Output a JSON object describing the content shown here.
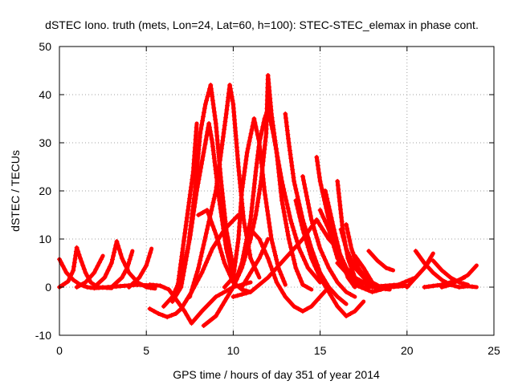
{
  "chart_data": {
    "type": "scatter",
    "marker": "plus",
    "title": "dSTEC Iono. truth (mets, Lon=24, Lat=60, h=100): STEC-STEC_elemax in phase cont.",
    "xlabel": "GPS time / hours of day 351 of year 2014",
    "ylabel": "dSTEC  / TECUs",
    "xlim": [
      0,
      25
    ],
    "ylim": [
      -10,
      50
    ],
    "xticks": [
      0,
      5,
      10,
      15,
      20,
      25
    ],
    "yticks": [
      -10,
      0,
      10,
      20,
      30,
      40,
      50
    ],
    "grid": true,
    "color": "#ff0000",
    "arcs": [
      [
        [
          0.0,
          5.8
        ],
        [
          0.4,
          3.0
        ],
        [
          0.8,
          1.5
        ],
        [
          1.2,
          0.5
        ],
        [
          1.6,
          0.0
        ],
        [
          2.0,
          -0.2
        ],
        [
          2.8,
          0.0
        ],
        [
          3.5,
          0.2
        ],
        [
          4.5,
          0.5
        ],
        [
          5.5,
          0.3
        ]
      ],
      [
        [
          0.0,
          0.0
        ],
        [
          0.5,
          1.2
        ],
        [
          0.8,
          3.5
        ],
        [
          1.0,
          8.2
        ],
        [
          1.2,
          6.0
        ],
        [
          1.5,
          3.0
        ],
        [
          1.8,
          1.0
        ],
        [
          2.2,
          0.0
        ],
        [
          3.0,
          -0.2
        ]
      ],
      [
        [
          1.0,
          0.0
        ],
        [
          1.5,
          1.0
        ],
        [
          2.0,
          3.0
        ],
        [
          2.5,
          6.5
        ]
      ],
      [
        [
          2.0,
          0.0
        ],
        [
          2.6,
          2.0
        ],
        [
          3.0,
          5.0
        ],
        [
          3.3,
          9.5
        ],
        [
          3.6,
          6.0
        ],
        [
          4.0,
          3.0
        ],
        [
          4.5,
          1.0
        ],
        [
          5.0,
          0.0
        ],
        [
          5.5,
          -0.3
        ]
      ],
      [
        [
          3.0,
          0.0
        ],
        [
          3.6,
          2.0
        ],
        [
          3.9,
          4.0
        ],
        [
          4.2,
          7.5
        ]
      ],
      [
        [
          4.0,
          0.0
        ],
        [
          4.6,
          2.0
        ],
        [
          5.0,
          4.5
        ],
        [
          5.3,
          8.0
        ]
      ],
      [
        [
          5.2,
          0.5
        ],
        [
          5.8,
          0.3
        ],
        [
          6.3,
          -0.5
        ],
        [
          6.8,
          -3.0
        ],
        [
          7.2,
          -5.0
        ],
        [
          7.6,
          -7.5
        ],
        [
          8.2,
          -5.0
        ],
        [
          9.0,
          -2.0
        ],
        [
          10.0,
          0.0
        ],
        [
          11.0,
          1.0
        ]
      ],
      [
        [
          5.2,
          -4.5
        ],
        [
          5.7,
          -5.5
        ],
        [
          6.2,
          -6.2
        ],
        [
          6.7,
          -5.5
        ],
        [
          7.0,
          -4.5
        ],
        [
          7.6,
          -1.0
        ],
        [
          8.2,
          3.0
        ],
        [
          8.8,
          8.0
        ],
        [
          9.5,
          12.0
        ],
        [
          10.3,
          15.0
        ]
      ],
      [
        [
          6.0,
          -4.0
        ],
        [
          6.5,
          -2.0
        ],
        [
          7.0,
          2.0
        ],
        [
          7.5,
          10.0
        ],
        [
          7.9,
          20.0
        ],
        [
          8.3,
          28.0
        ],
        [
          8.6,
          34.0
        ],
        [
          8.8,
          30.0
        ],
        [
          9.2,
          18.0
        ],
        [
          9.6,
          8.0
        ],
        [
          10.0,
          2.0
        ]
      ],
      [
        [
          6.5,
          -3.0
        ],
        [
          7.0,
          0.0
        ],
        [
          7.4,
          8.0
        ],
        [
          7.8,
          20.0
        ],
        [
          8.1,
          32.0
        ],
        [
          8.4,
          38.0
        ],
        [
          8.7,
          42.0
        ],
        [
          9.0,
          34.0
        ],
        [
          9.3,
          22.0
        ],
        [
          9.6,
          12.0
        ],
        [
          10.0,
          4.0
        ]
      ],
      [
        [
          6.8,
          0.0
        ],
        [
          7.1,
          8.0
        ],
        [
          7.4,
          16.0
        ],
        [
          7.7,
          24.0
        ],
        [
          7.9,
          34.0
        ]
      ],
      [
        [
          7.5,
          -2.0
        ],
        [
          8.0,
          4.0
        ],
        [
          8.5,
          12.0
        ],
        [
          9.0,
          20.0
        ],
        [
          9.3,
          28.0
        ],
        [
          9.6,
          36.0
        ],
        [
          9.8,
          42.0
        ],
        [
          10.0,
          38.0
        ],
        [
          10.3,
          25.0
        ],
        [
          10.6,
          14.0
        ],
        [
          11.0,
          6.0
        ],
        [
          11.5,
          2.0
        ]
      ],
      [
        [
          8.0,
          15.0
        ],
        [
          8.5,
          16.0
        ],
        [
          9.0,
          11.0
        ],
        [
          9.5,
          5.0
        ],
        [
          10.0,
          1.0
        ],
        [
          10.5,
          -0.5
        ],
        [
          11.0,
          -1.0
        ]
      ],
      [
        [
          8.3,
          -8.0
        ],
        [
          9.0,
          -6.0
        ],
        [
          9.5,
          -3.0
        ],
        [
          10.0,
          0.0
        ],
        [
          10.5,
          4.0
        ],
        [
          11.0,
          10.0
        ],
        [
          11.3,
          15.0
        ],
        [
          11.6,
          22.0
        ],
        [
          11.9,
          32.0
        ],
        [
          12.0,
          44.0
        ],
        [
          12.2,
          36.0
        ],
        [
          12.5,
          28.0
        ],
        [
          12.8,
          18.0
        ],
        [
          13.2,
          10.0
        ],
        [
          13.6,
          4.0
        ],
        [
          14.0,
          0.5
        ],
        [
          14.5,
          -0.5
        ]
      ],
      [
        [
          9.5,
          0.0
        ],
        [
          10.0,
          2.0
        ],
        [
          10.3,
          10.0
        ],
        [
          10.5,
          20.0
        ],
        [
          10.8,
          28.0
        ],
        [
          11.2,
          35.0
        ],
        [
          11.5,
          30.0
        ],
        [
          11.8,
          20.0
        ],
        [
          12.2,
          10.0
        ],
        [
          12.6,
          4.0
        ],
        [
          13.0,
          0.5
        ]
      ],
      [
        [
          10.0,
          0.0
        ],
        [
          10.5,
          5.0
        ],
        [
          11.0,
          14.0
        ],
        [
          11.3,
          24.0
        ],
        [
          11.5,
          30.0
        ],
        [
          11.8,
          35.0
        ],
        [
          12.0,
          37.0
        ],
        [
          12.3,
          32.0
        ],
        [
          12.8,
          22.0
        ],
        [
          13.3,
          14.0
        ],
        [
          13.8,
          8.0
        ],
        [
          14.3,
          4.0
        ],
        [
          15.0,
          1.0
        ]
      ],
      [
        [
          10.0,
          -2.0
        ],
        [
          11.0,
          -1.0
        ],
        [
          12.0,
          2.0
        ],
        [
          13.0,
          6.0
        ],
        [
          14.0,
          10.0
        ],
        [
          14.8,
          14.0
        ],
        [
          15.5,
          10.0
        ],
        [
          16.0,
          8.0
        ],
        [
          16.5,
          4.0
        ],
        [
          17.0,
          1.0
        ]
      ],
      [
        [
          10.5,
          0.0
        ],
        [
          11.0,
          3.0
        ],
        [
          11.5,
          6.0
        ],
        [
          12.0,
          10.0
        ]
      ],
      [
        [
          11.0,
          12.0
        ],
        [
          11.5,
          10.0
        ],
        [
          12.0,
          6.0
        ],
        [
          12.5,
          1.0
        ],
        [
          13.0,
          -2.0
        ],
        [
          13.5,
          -4.0
        ],
        [
          14.0,
          -5.0
        ],
        [
          14.5,
          -4.0
        ],
        [
          15.0,
          -2.0
        ],
        [
          15.5,
          0.0
        ]
      ],
      [
        [
          13.0,
          36.0
        ],
        [
          13.2,
          30.0
        ],
        [
          13.5,
          22.0
        ],
        [
          14.0,
          14.0
        ],
        [
          14.5,
          8.0
        ],
        [
          15.0,
          3.0
        ],
        [
          15.5,
          0.0
        ],
        [
          16.0,
          -2.0
        ],
        [
          16.5,
          -3.5
        ]
      ],
      [
        [
          13.6,
          18.0
        ],
        [
          14.0,
          12.0
        ],
        [
          14.5,
          6.0
        ],
        [
          15.0,
          2.0
        ],
        [
          15.5,
          -1.0
        ],
        [
          16.0,
          -4.0
        ],
        [
          16.5,
          -6.0
        ],
        [
          17.0,
          -5.0
        ],
        [
          17.5,
          -3.0
        ]
      ],
      [
        [
          14.0,
          23.0
        ],
        [
          14.5,
          14.0
        ],
        [
          15.0,
          8.0
        ],
        [
          15.5,
          4.0
        ],
        [
          16.0,
          1.0
        ],
        [
          16.5,
          -1.0
        ],
        [
          17.0,
          -2.0
        ]
      ],
      [
        [
          14.8,
          27.0
        ],
        [
          15.0,
          22.0
        ],
        [
          15.5,
          14.0
        ],
        [
          16.0,
          8.0
        ],
        [
          16.5,
          4.0
        ],
        [
          17.0,
          2.0
        ],
        [
          17.5,
          1.0
        ],
        [
          18.0,
          0.0
        ],
        [
          19.0,
          -0.5
        ]
      ],
      [
        [
          15.0,
          16.0
        ],
        [
          15.5,
          12.0
        ],
        [
          16.0,
          6.0
        ],
        [
          16.5,
          3.0
        ],
        [
          17.0,
          1.0
        ],
        [
          17.5,
          0.0
        ]
      ],
      [
        [
          15.3,
          20.0
        ],
        [
          15.8,
          12.0
        ],
        [
          16.2,
          6.0
        ],
        [
          16.6,
          2.0
        ],
        [
          17.0,
          0.0
        ]
      ],
      [
        [
          16.0,
          22.0
        ],
        [
          16.3,
          12.0
        ],
        [
          16.6,
          6.0
        ],
        [
          17.0,
          2.0
        ],
        [
          17.5,
          0.0
        ]
      ],
      [
        [
          16.2,
          12.0
        ],
        [
          16.5,
          8.0
        ],
        [
          17.0,
          4.0
        ],
        [
          17.5,
          2.0
        ],
        [
          18.0,
          0.0
        ]
      ],
      [
        [
          16.5,
          13.0
        ],
        [
          16.8,
          8.0
        ],
        [
          17.2,
          4.0
        ],
        [
          17.6,
          2.0
        ],
        [
          18.2,
          0.0
        ]
      ],
      [
        [
          16.0,
          5.0
        ],
        [
          16.5,
          3.0
        ],
        [
          17.0,
          0.5
        ],
        [
          18.0,
          -1.0
        ],
        [
          19.0,
          0.0
        ],
        [
          20.0,
          0.3
        ]
      ],
      [
        [
          17.0,
          6.5
        ],
        [
          17.5,
          4.0
        ],
        [
          18.0,
          1.0
        ],
        [
          18.5,
          0.0
        ],
        [
          19.0,
          -0.3
        ]
      ],
      [
        [
          17.8,
          7.5
        ],
        [
          18.3,
          5.5
        ],
        [
          18.8,
          4.0
        ],
        [
          19.2,
          3.5
        ]
      ],
      [
        [
          17.5,
          0.0
        ],
        [
          18.5,
          0.2
        ],
        [
          19.5,
          0.5
        ],
        [
          20.5,
          2.0
        ],
        [
          21.0,
          4.0
        ],
        [
          21.5,
          7.0
        ]
      ],
      [
        [
          20.5,
          7.5
        ],
        [
          21.0,
          5.0
        ],
        [
          21.5,
          3.0
        ],
        [
          22.0,
          1.5
        ],
        [
          22.5,
          0.5
        ],
        [
          23.0,
          0.0
        ]
      ],
      [
        [
          20.0,
          0.0
        ],
        [
          20.5,
          2.0
        ],
        [
          21.0,
          4.0
        ],
        [
          21.3,
          5.5
        ]
      ],
      [
        [
          21.5,
          5.5
        ],
        [
          22.0,
          3.5
        ],
        [
          22.5,
          2.0
        ],
        [
          23.0,
          1.0
        ],
        [
          23.5,
          0.5
        ]
      ],
      [
        [
          21.0,
          0.0
        ],
        [
          22.0,
          0.5
        ],
        [
          22.5,
          1.0
        ],
        [
          23.0,
          1.5
        ],
        [
          23.5,
          2.5
        ],
        [
          24.0,
          4.5
        ]
      ],
      [
        [
          22.0,
          0.0
        ],
        [
          22.5,
          0.5
        ],
        [
          23.0,
          1.5
        ],
        [
          23.3,
          2.0
        ]
      ],
      [
        [
          23.0,
          0.0
        ],
        [
          23.5,
          0.2
        ],
        [
          24.0,
          0.0
        ]
      ]
    ]
  }
}
